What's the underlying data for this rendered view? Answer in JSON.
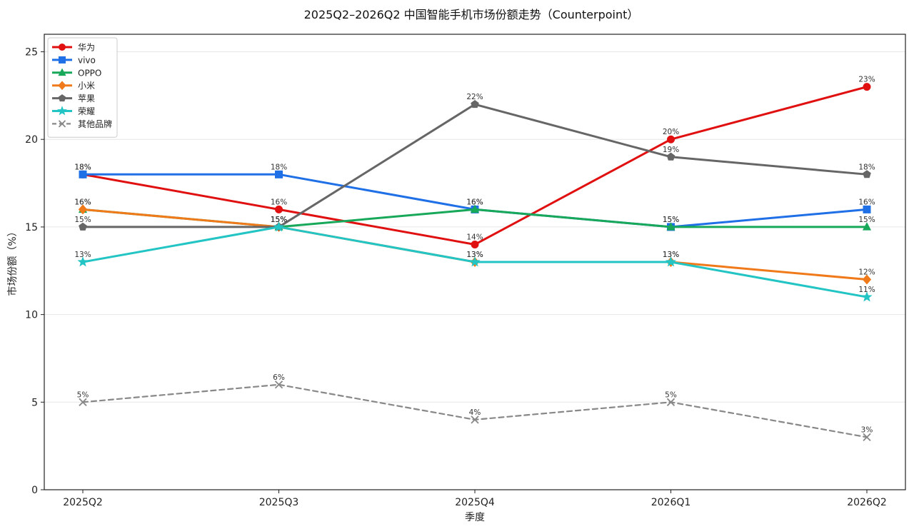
{
  "chart_data": {
    "type": "line",
    "title": "2025Q2–2026Q2 中国智能手机市场份额走势（Counterpoint）",
    "xlabel": "季度",
    "ylabel": "市场份额（%）",
    "categories": [
      "2025Q2",
      "2025Q3",
      "2025Q4",
      "2026Q1",
      "2026Q2"
    ],
    "ylim": [
      0,
      26
    ],
    "yticks": [
      0,
      5,
      10,
      15,
      20,
      25
    ],
    "grid": "horizontal",
    "legend_position": "top-left",
    "value_suffix": "%",
    "series": [
      {
        "name": "华为",
        "values": [
          18,
          16,
          14,
          20,
          23
        ],
        "color": "#e01010",
        "marker": "circle",
        "dashed": false
      },
      {
        "name": "vivo",
        "values": [
          18,
          18,
          16,
          15,
          16
        ],
        "color": "#1f6fe6",
        "marker": "square",
        "dashed": false
      },
      {
        "name": "OPPO",
        "values": [
          16,
          15,
          16,
          15,
          15
        ],
        "color": "#18a85a",
        "marker": "triangle",
        "dashed": false
      },
      {
        "name": "小米",
        "values": [
          16,
          15,
          13,
          13,
          12
        ],
        "color": "#f07a1a",
        "marker": "diamond",
        "dashed": false
      },
      {
        "name": "苹果",
        "values": [
          15,
          15,
          22,
          19,
          18
        ],
        "color": "#666666",
        "marker": "pentagon",
        "dashed": false
      },
      {
        "name": "荣耀",
        "values": [
          13,
          15,
          13,
          13,
          11
        ],
        "color": "#22c4c4",
        "marker": "star",
        "dashed": false
      },
      {
        "name": "其他品牌",
        "values": [
          5,
          6,
          4,
          5,
          3
        ],
        "color": "#888888",
        "marker": "x",
        "dashed": true
      }
    ]
  }
}
